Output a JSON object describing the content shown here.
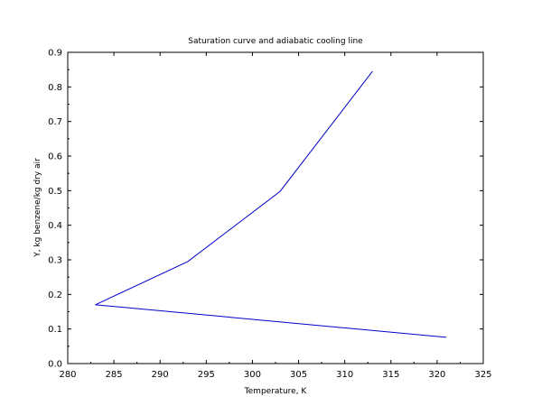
{
  "chart_data": {
    "type": "line",
    "title": "Saturation curve and adiabatic cooling line",
    "xlabel": "Temperature, K",
    "ylabel": "Y, kg benzene/kg dry air",
    "xlim": [
      280,
      325
    ],
    "ylim": [
      0,
      0.9
    ],
    "xticks": [
      "280",
      "285",
      "290",
      "295",
      "300",
      "305",
      "310",
      "315",
      "320",
      "325"
    ],
    "yticks": [
      "0.0",
      "0.1",
      "0.2",
      "0.3",
      "0.4",
      "0.5",
      "0.6",
      "0.7",
      "0.8",
      "0.9"
    ],
    "grid": false,
    "legend": "none",
    "series": [
      {
        "color": "#0000cc",
        "x": [
          283,
          293,
          303,
          313
        ],
        "y": [
          0.17,
          0.295,
          0.498,
          0.845
        ]
      },
      {
        "color": "#0000cc",
        "x": [
          283,
          321
        ],
        "y": [
          0.17,
          0.076
        ]
      }
    ]
  }
}
